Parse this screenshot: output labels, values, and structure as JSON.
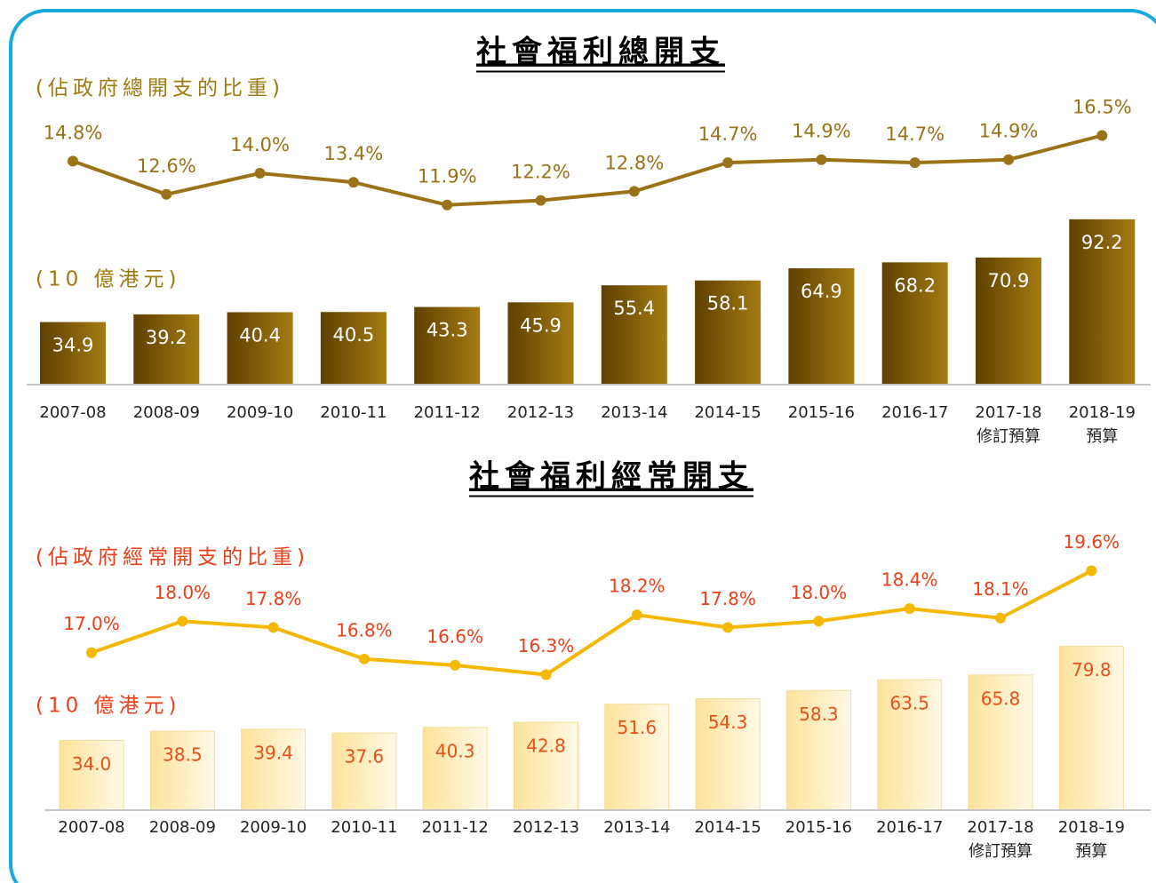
{
  "chart_data": [
    {
      "type": "bar_line",
      "title": "社會福利總開支",
      "y_label": "(10 億港元)",
      "y2_label": "(佔政府總開支的比重)",
      "categories": [
        [
          "2007-08"
        ],
        [
          "2008-09"
        ],
        [
          "2009-10"
        ],
        [
          "2010-11"
        ],
        [
          "2011-12"
        ],
        [
          "2012-13"
        ],
        [
          "2013-14"
        ],
        [
          "2014-15"
        ],
        [
          "2015-16"
        ],
        [
          "2016-17"
        ],
        [
          "2017-18",
          "修訂預算"
        ],
        [
          "2018-19",
          "預算"
        ]
      ],
      "ylim": [
        0,
        160
      ],
      "y2lim": [
        0,
        19
      ],
      "series": [
        {
          "kind": "bar",
          "color": "#7a5500",
          "values": [
            34.9,
            39.2,
            40.4,
            40.5,
            43.3,
            45.9,
            55.4,
            58.1,
            64.9,
            68.2,
            70.9,
            92.2
          ]
        },
        {
          "kind": "line",
          "axis": "y2",
          "color": "#9a7218",
          "values": [
            14.8,
            12.6,
            14.0,
            13.4,
            11.9,
            12.2,
            12.8,
            14.7,
            14.9,
            14.7,
            14.9,
            16.5
          ],
          "value_labels": [
            "14.8%",
            "12.6%",
            "14.0%",
            "13.4%",
            "11.9%",
            "12.2%",
            "12.8%",
            "14.7%",
            "14.9%",
            "14.7%",
            "14.9%",
            "16.5%"
          ]
        }
      ]
    },
    {
      "type": "bar_line",
      "title": "社會福利經常開支",
      "y_label": "(10 億港元)",
      "y2_label": "(佔政府經常開支的比重)",
      "categories": [
        [
          "2007-08"
        ],
        [
          "2008-09"
        ],
        [
          "2009-10"
        ],
        [
          "2010-11"
        ],
        [
          "2011-12"
        ],
        [
          "2012-13"
        ],
        [
          "2013-14"
        ],
        [
          "2014-15"
        ],
        [
          "2015-16"
        ],
        [
          "2016-17"
        ],
        [
          "2017-18",
          "修訂預算"
        ],
        [
          "2018-19",
          "預算"
        ]
      ],
      "ylim": [
        0,
        135
      ],
      "y2lim": [
        12,
        20.8
      ],
      "series": [
        {
          "kind": "bar",
          "color": "#fde7a0",
          "values": [
            34.0,
            38.5,
            39.4,
            37.6,
            40.3,
            42.8,
            51.6,
            54.3,
            58.3,
            63.5,
            65.8,
            79.8
          ],
          "value_labels": [
            "34.0",
            "38.5",
            "39.4",
            "37.6",
            "40.3",
            "42.8",
            "51.6",
            "54.3",
            "58.3",
            "63.5",
            "65.8",
            "79.8"
          ]
        },
        {
          "kind": "line",
          "axis": "y2",
          "color": "#f5b800",
          "values": [
            17.0,
            18.0,
            17.8,
            16.8,
            16.6,
            16.3,
            18.2,
            17.8,
            18.0,
            18.4,
            18.1,
            19.6
          ],
          "value_labels": [
            "17.0%",
            "18.0%",
            "17.8%",
            "16.8%",
            "16.6%",
            "16.3%",
            "18.2%",
            "17.8%",
            "18.0%",
            "18.4%",
            "18.1%",
            "19.6%"
          ]
        }
      ]
    }
  ]
}
